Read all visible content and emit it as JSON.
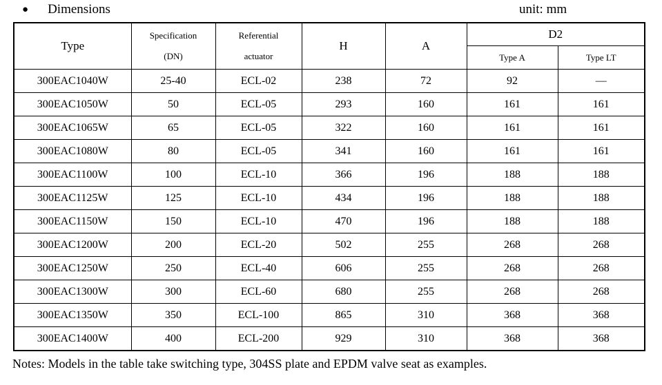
{
  "page": {
    "bullet": "●",
    "section_title": "Dimensions",
    "unit_label": "unit: mm",
    "notes": "Notes: Models in the table take switching type, 304SS plate and EPDM valve seat as examples."
  },
  "table": {
    "headers": {
      "type": "Type",
      "specification_line1": "Specification",
      "specification_line2": "(DN)",
      "actuator_line1": "Referential",
      "actuator_line2": "actuator",
      "h": "H",
      "a": "A",
      "d2": "D2",
      "d2_type_a": "Type A",
      "d2_type_lt": "Type LT"
    },
    "rows": [
      [
        "300EAC1040W",
        "25-40",
        "ECL-02",
        "238",
        "72",
        "92",
        "—"
      ],
      [
        "300EAC1050W",
        "50",
        "ECL-05",
        "293",
        "160",
        "161",
        "161"
      ],
      [
        "300EAC1065W",
        "65",
        "ECL-05",
        "322",
        "160",
        "161",
        "161"
      ],
      [
        "300EAC1080W",
        "80",
        "ECL-05",
        "341",
        "160",
        "161",
        "161"
      ],
      [
        "300EAC1100W",
        "100",
        "ECL-10",
        "366",
        "196",
        "188",
        "188"
      ],
      [
        "300EAC1125W",
        "125",
        "ECL-10",
        "434",
        "196",
        "188",
        "188"
      ],
      [
        "300EAC1150W",
        "150",
        "ECL-10",
        "470",
        "196",
        "188",
        "188"
      ],
      [
        "300EAC1200W",
        "200",
        "ECL-20",
        "502",
        "255",
        "268",
        "268"
      ],
      [
        "300EAC1250W",
        "250",
        "ECL-40",
        "606",
        "255",
        "268",
        "268"
      ],
      [
        "300EAC1300W",
        "300",
        "ECL-60",
        "680",
        "255",
        "268",
        "268"
      ],
      [
        "300EAC1350W",
        "350",
        "ECL-100",
        "865",
        "310",
        "368",
        "368"
      ],
      [
        "300EAC1400W",
        "400",
        "ECL-200",
        "929",
        "310",
        "368",
        "368"
      ]
    ]
  }
}
